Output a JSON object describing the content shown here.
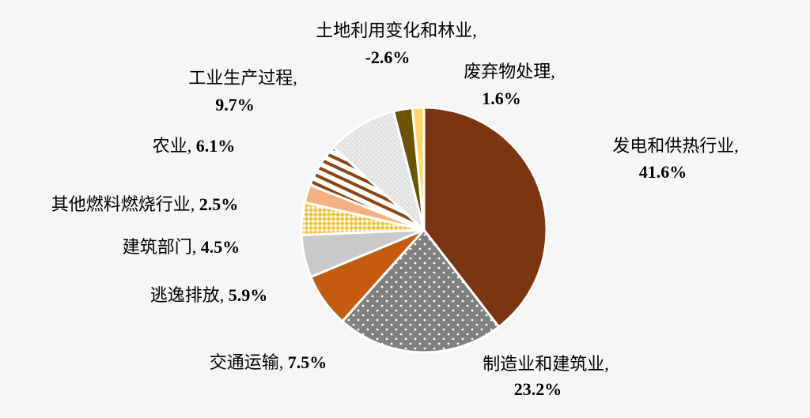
{
  "chart_data": {
    "type": "pie",
    "title": "",
    "slices": [
      {
        "name": "发电和供热行业",
        "label": "发电和供热行业,",
        "value": 41.6,
        "value_label": "41.6%",
        "color": "#7b3510",
        "pattern": "solid"
      },
      {
        "name": "制造业和建筑业",
        "label": "制造业和建筑业,",
        "value": 23.2,
        "value_label": "23.2%",
        "color": "#808080",
        "pattern": "dots"
      },
      {
        "name": "交通运输",
        "label": "交通运输,",
        "value": 7.5,
        "value_label": "7.5%",
        "color": "#c55a11",
        "pattern": "solid"
      },
      {
        "name": "逃逸排放",
        "label": "逃逸排放,",
        "value": 5.9,
        "value_label": "5.9%",
        "color": "#c9c9c9",
        "pattern": "solid"
      },
      {
        "name": "建筑部门",
        "label": "建筑部门,",
        "value": 4.5,
        "value_label": "4.5%",
        "color": "#f2c12e",
        "pattern": "diag-check"
      },
      {
        "name": "其他燃料燃烧行业",
        "label": "其他燃料燃烧行业,",
        "value": 2.5,
        "value_label": "2.5%",
        "color": "#f4b183",
        "pattern": "solid"
      },
      {
        "name": "农业",
        "label": "农业,",
        "value": 6.1,
        "value_label": "6.1%",
        "color": "#8b4513",
        "pattern": "stripes"
      },
      {
        "name": "工业生产过程",
        "label": "工业生产过程,",
        "value": 9.7,
        "value_label": "9.7%",
        "color": "#d9d9d9",
        "pattern": "dots-light"
      },
      {
        "name": "土地利用变化和林业",
        "label": "土地利用变化和林业,",
        "value": -2.6,
        "value_label": "-2.6%",
        "color": "#6b5300",
        "pattern": "solid"
      },
      {
        "name": "废弃物处理",
        "label": "废弃物处理,",
        "value": 1.6,
        "value_label": "1.6%",
        "color": "#ffd966",
        "pattern": "solid"
      }
    ]
  }
}
